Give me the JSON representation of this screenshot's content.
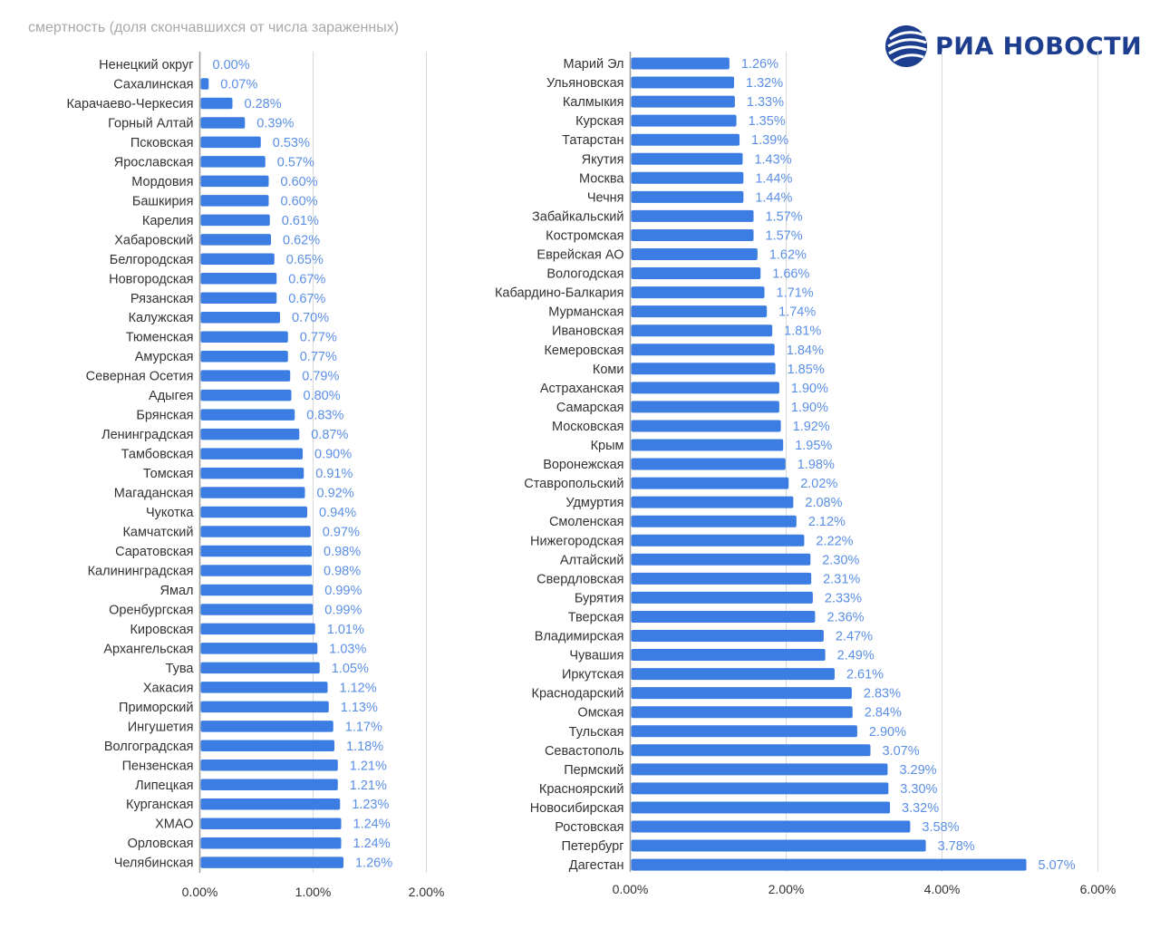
{
  "header": {
    "subtitle": "смертность (доля скончавшихся от числа зараженных)",
    "brand": "РИА НОВОСТИ",
    "brand_logo": "ria-globe-icon"
  },
  "colors": {
    "bar": "#3b7de3",
    "value_label": "#5b8fe6",
    "grid": "#d9d9d9",
    "axis": "#9e9e9e",
    "text": "#333333",
    "brand": "#1d3e8e"
  },
  "chart_data": [
    {
      "type": "bar",
      "orientation": "horizontal",
      "xlim": [
        0,
        2
      ],
      "ticks": [
        "0.00%",
        "1.00%",
        "2.00%"
      ],
      "categories": [
        "Ненецкий округ",
        "Сахалинская",
        "Карачаево-Черкесия",
        "Горный Алтай",
        "Псковская",
        "Ярославская",
        "Мордовия",
        "Башкирия",
        "Карелия",
        "Хабаровский",
        "Белгородская",
        "Новгородская",
        "Рязанская",
        "Калужская",
        "Тюменская",
        "Амурская",
        "Северная Осетия",
        "Адыгея",
        "Брянская",
        "Ленинградская",
        "Тамбовская",
        "Томская",
        "Магаданская",
        "Чукотка",
        "Камчатский",
        "Саратовская",
        "Калининградская",
        "Ямал",
        "Оренбургская",
        "Кировская",
        "Архангельская",
        "Тува",
        "Хакасия",
        "Приморский",
        "Ингушетия",
        "Волгоградская",
        "Пензенская",
        "Липецкая",
        "Курганская",
        "ХМАО",
        "Орловская",
        "Челябинская"
      ],
      "values": [
        0.0,
        0.07,
        0.28,
        0.39,
        0.53,
        0.57,
        0.6,
        0.6,
        0.61,
        0.62,
        0.65,
        0.67,
        0.67,
        0.7,
        0.77,
        0.77,
        0.79,
        0.8,
        0.83,
        0.87,
        0.9,
        0.91,
        0.92,
        0.94,
        0.97,
        0.98,
        0.98,
        0.99,
        0.99,
        1.01,
        1.03,
        1.05,
        1.12,
        1.13,
        1.17,
        1.18,
        1.21,
        1.21,
        1.23,
        1.24,
        1.24,
        1.26
      ],
      "labels": [
        "0.00%",
        "0.07%",
        "0.28%",
        "0.39%",
        "0.53%",
        "0.57%",
        "0.60%",
        "0.60%",
        "0.61%",
        "0.62%",
        "0.65%",
        "0.67%",
        "0.67%",
        "0.70%",
        "0.77%",
        "0.77%",
        "0.79%",
        "0.80%",
        "0.83%",
        "0.87%",
        "0.90%",
        "0.91%",
        "0.92%",
        "0.94%",
        "0.97%",
        "0.98%",
        "0.98%",
        "0.99%",
        "0.99%",
        "1.01%",
        "1.03%",
        "1.05%",
        "1.12%",
        "1.13%",
        "1.17%",
        "1.18%",
        "1.21%",
        "1.21%",
        "1.23%",
        "1.24%",
        "1.24%",
        "1.26%"
      ]
    },
    {
      "type": "bar",
      "orientation": "horizontal",
      "xlim": [
        0,
        6
      ],
      "ticks": [
        "0.00%",
        "2.00%",
        "4.00%",
        "6.00%"
      ],
      "categories": [
        "Марий Эл",
        "Ульяновская",
        "Калмыкия",
        "Курская",
        "Татарстан",
        "Якутия",
        "Москва",
        "Чечня",
        "Забайкальский",
        "Костромская",
        "Еврейская АО",
        "Вологодская",
        "Кабардино-Балкария",
        "Мурманская",
        "Ивановская",
        "Кемеровская",
        "Коми",
        "Астраханская",
        "Самарская",
        "Московская",
        "Крым",
        "Воронежская",
        "Ставропольский",
        "Удмуртия",
        "Смоленская",
        "Нижегородская",
        "Алтайский",
        "Свердловская",
        "Бурятия",
        "Тверская",
        "Владимирская",
        "Чувашия",
        "Иркутская",
        "Краснодарский",
        "Омская",
        "Тульская",
        "Севастополь",
        "Пермский",
        "Красноярский",
        "Новосибирская",
        "Ростовская",
        "Петербург",
        "Дагестан"
      ],
      "values": [
        1.26,
        1.32,
        1.33,
        1.35,
        1.39,
        1.43,
        1.44,
        1.44,
        1.57,
        1.57,
        1.62,
        1.66,
        1.71,
        1.74,
        1.81,
        1.84,
        1.85,
        1.9,
        1.9,
        1.92,
        1.95,
        1.98,
        2.02,
        2.08,
        2.12,
        2.22,
        2.3,
        2.31,
        2.33,
        2.36,
        2.47,
        2.49,
        2.61,
        2.83,
        2.84,
        2.9,
        3.07,
        3.29,
        3.3,
        3.32,
        3.58,
        3.78,
        5.07
      ],
      "labels": [
        "1.26%",
        "1.32%",
        "1.33%",
        "1.35%",
        "1.39%",
        "1.43%",
        "1.44%",
        "1.44%",
        "1.57%",
        "1.57%",
        "1.62%",
        "1.66%",
        "1.71%",
        "1.74%",
        "1.81%",
        "1.84%",
        "1.85%",
        "1.90%",
        "1.90%",
        "1.92%",
        "1.95%",
        "1.98%",
        "2.02%",
        "2.08%",
        "2.12%",
        "2.22%",
        "2.30%",
        "2.31%",
        "2.33%",
        "2.36%",
        "2.47%",
        "2.49%",
        "2.61%",
        "2.83%",
        "2.84%",
        "2.90%",
        "3.07%",
        "3.29%",
        "3.30%",
        "3.32%",
        "3.58%",
        "3.78%",
        "5.07%"
      ]
    }
  ]
}
